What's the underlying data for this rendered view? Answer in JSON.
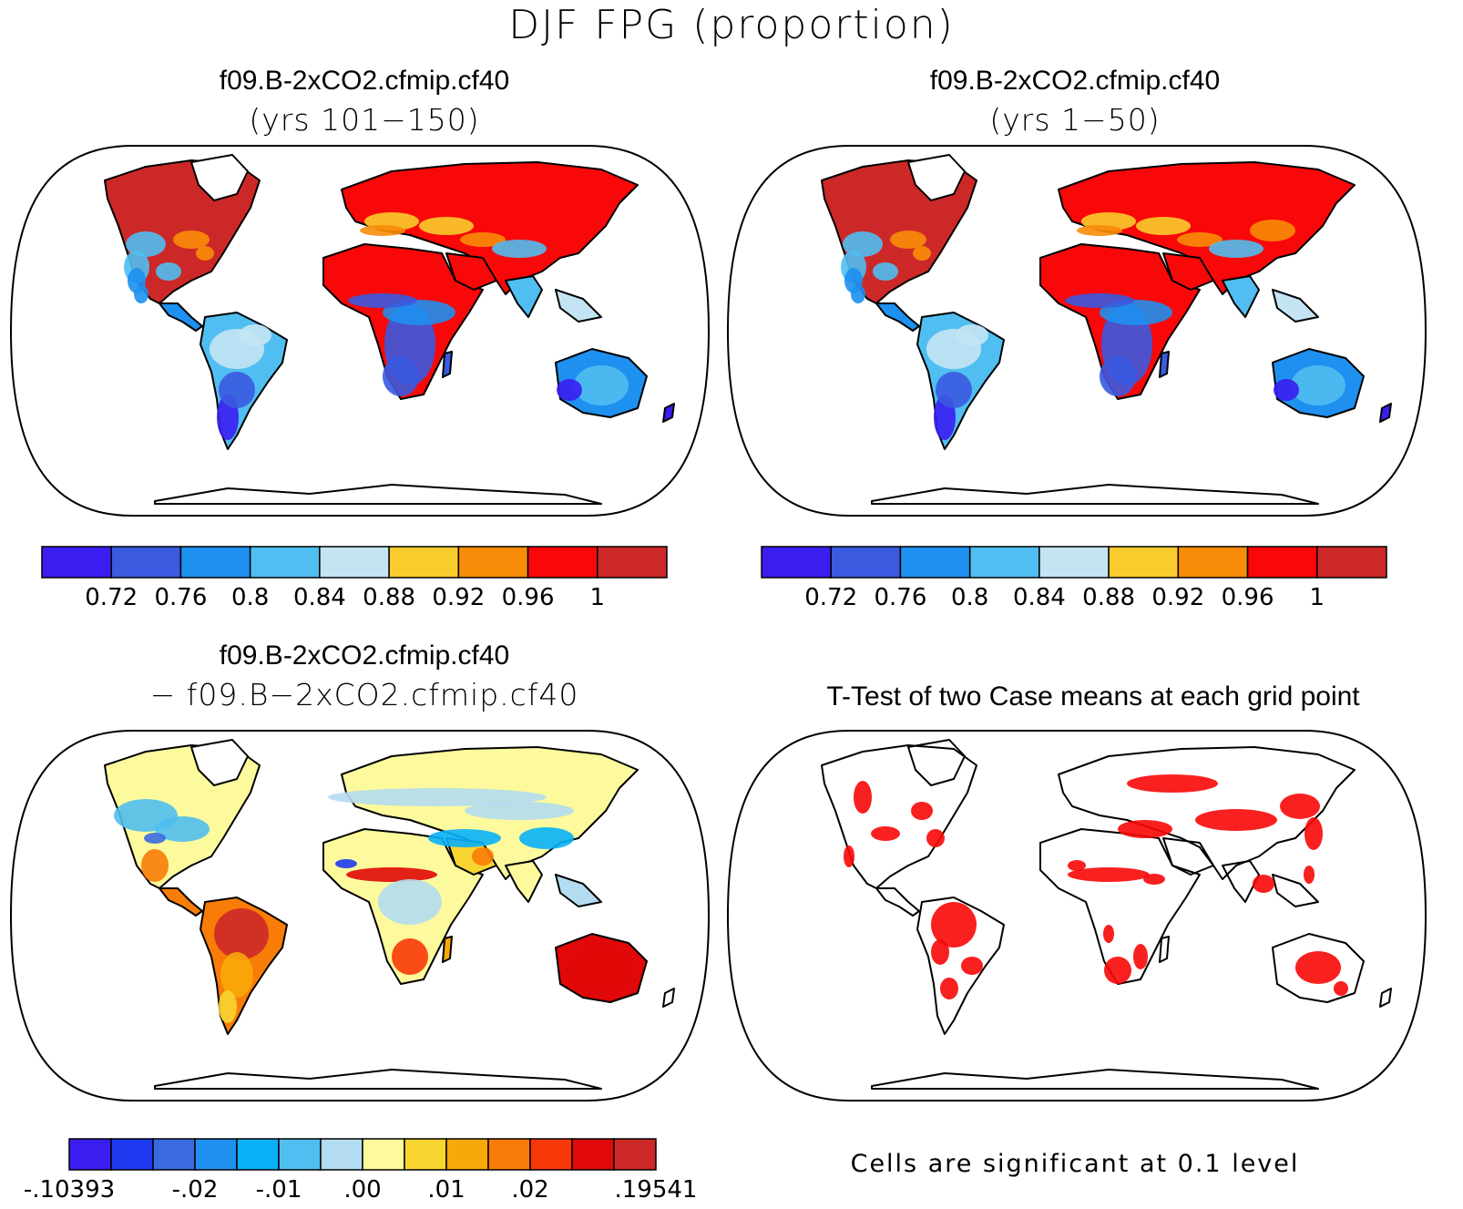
{
  "title": "DJF FPG (proportion)",
  "panels": [
    {
      "id": "p1",
      "title": "f09.B-2xCO2.cfmip.cf40",
      "subtitle": "(yrs 101−150)",
      "kind": "absolute"
    },
    {
      "id": "p2",
      "title": "f09.B-2xCO2.cfmip.cf40",
      "subtitle": "(yrs 1−50)",
      "kind": "absolute"
    },
    {
      "id": "p3",
      "title": "f09.B-2xCO2.cfmip.cf40",
      "subtitle": "− f09.B−2xCO2.cfmip.cf40",
      "kind": "difference"
    },
    {
      "id": "p4",
      "title": "T-Test of two Case means at each grid point",
      "subtitle": "",
      "kind": "significance",
      "note": "Cells are significant at 0.1 level"
    }
  ],
  "colorbars": {
    "absolute": {
      "colors": [
        "#3a1ef0",
        "#3a5ae0",
        "#1e90f0",
        "#50bef0",
        "#c4e4f4",
        "#f8cc2c",
        "#f88c08",
        "#f80808",
        "#cc2828"
      ],
      "tick_labels": [
        "0.72",
        "0.76",
        "0.8",
        "0.84",
        "0.88",
        "0.92",
        "0.96",
        "1"
      ]
    },
    "difference": {
      "colors": [
        "#3a1ef0",
        "#1e3af0",
        "#3a6ae0",
        "#1e90f0",
        "#08b0f8",
        "#50bef0",
        "#b4dcf0",
        "#fcfa9c",
        "#f8d430",
        "#f8a808",
        "#f87c08",
        "#f83808",
        "#e00808",
        "#cc2828"
      ],
      "tick_labels": [
        "-.10393",
        "-.02",
        "-.01",
        ".00",
        ".01",
        ".02",
        ".19541"
      ]
    }
  },
  "significance_color": "#f80808"
}
